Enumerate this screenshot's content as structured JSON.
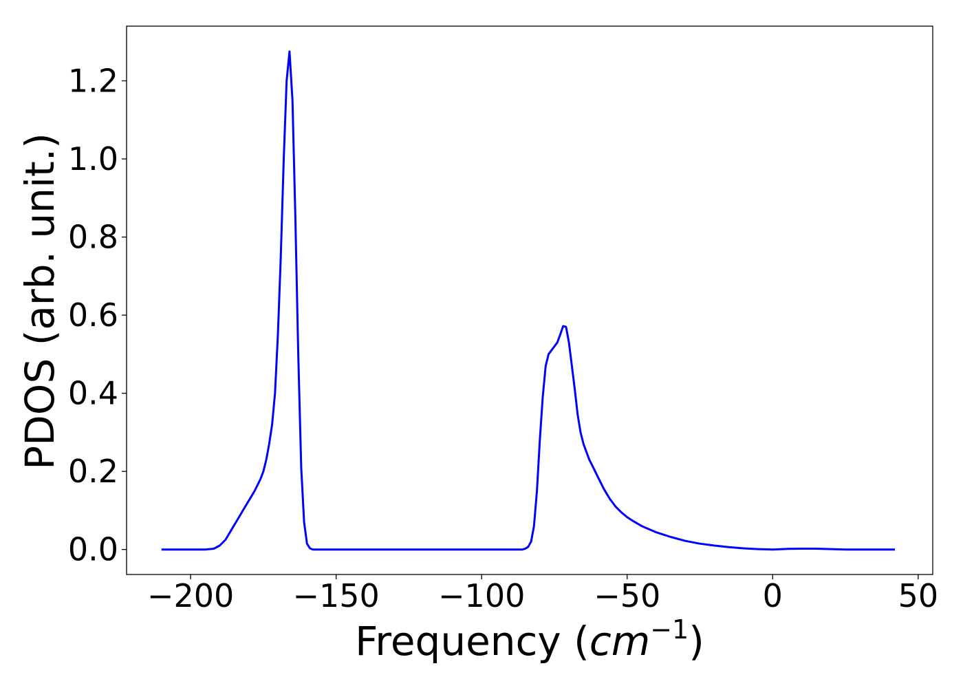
{
  "chart_data": {
    "type": "line",
    "title": "",
    "xlabel": "Frequency",
    "xlabel_unit_base": "cm",
    "xlabel_unit_exp": "−1",
    "ylabel": "PDOS (arb. unit.)",
    "xlim": [
      -222,
      55
    ],
    "ylim": [
      -0.064,
      1.34
    ],
    "x_ticks": [
      -200,
      -150,
      -100,
      -50,
      0,
      50
    ],
    "x_tick_labels": [
      "−200",
      "−150",
      "−100",
      "−50",
      "0",
      "50"
    ],
    "y_ticks": [
      0.0,
      0.2,
      0.4,
      0.6,
      0.8,
      1.0,
      1.2
    ],
    "y_tick_labels": [
      "0.0",
      "0.2",
      "0.4",
      "0.6",
      "0.8",
      "1.0",
      "1.2"
    ],
    "grid": false,
    "legend": "none",
    "line_color": "#0000ff",
    "series": [
      {
        "x": [
          -210,
          -200,
          -195,
          -192,
          -190,
          -188,
          -186,
          -184,
          -182,
          -180,
          -178,
          -176,
          -175,
          -174,
          -173,
          -172,
          -171,
          -170,
          -169,
          -168,
          -167,
          -166,
          -165,
          -164,
          -163,
          -162,
          -161,
          -160,
          -159,
          -158,
          -157,
          -150,
          -120,
          -100,
          -90,
          -86,
          -85,
          -84,
          -83,
          -82,
          -81,
          -80,
          -79,
          -78,
          -77,
          -76,
          -75,
          -74,
          -73,
          -72,
          -71,
          -70,
          -69,
          -68,
          -67,
          -66,
          -65,
          -64,
          -63,
          -62,
          -60,
          -58,
          -56,
          -54,
          -52,
          -50,
          -48,
          -45,
          -40,
          -35,
          -30,
          -25,
          -20,
          -15,
          -10,
          -5,
          0,
          5,
          10,
          15,
          20,
          25,
          30,
          35,
          40,
          42
        ],
        "y": [
          0.0,
          0.0,
          0.0,
          0.002,
          0.01,
          0.025,
          0.05,
          0.075,
          0.1,
          0.125,
          0.15,
          0.18,
          0.2,
          0.23,
          0.27,
          0.32,
          0.4,
          0.55,
          0.75,
          1.0,
          1.2,
          1.275,
          1.15,
          0.85,
          0.5,
          0.21,
          0.07,
          0.015,
          0.003,
          0.0,
          0.0,
          0.0,
          0.0,
          0.0,
          0.0,
          0.0,
          0.002,
          0.007,
          0.02,
          0.06,
          0.15,
          0.28,
          0.39,
          0.47,
          0.5,
          0.51,
          0.52,
          0.53,
          0.55,
          0.572,
          0.57,
          0.53,
          0.47,
          0.41,
          0.345,
          0.3,
          0.27,
          0.25,
          0.23,
          0.215,
          0.185,
          0.155,
          0.13,
          0.11,
          0.095,
          0.083,
          0.073,
          0.06,
          0.044,
          0.032,
          0.022,
          0.015,
          0.01,
          0.006,
          0.003,
          0.001,
          0.0,
          0.0015,
          0.002,
          0.002,
          0.001,
          0.0,
          0.0,
          0.0,
          0.0,
          0.0
        ]
      }
    ]
  }
}
